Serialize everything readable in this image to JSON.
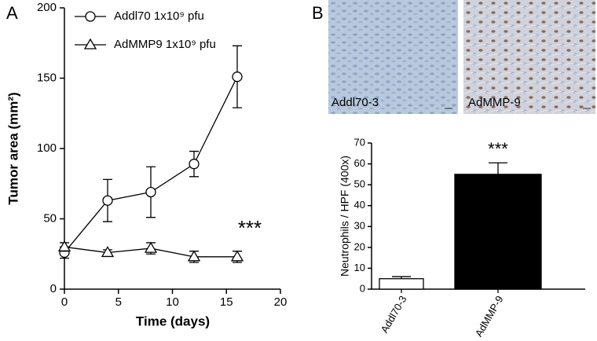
{
  "chart_data": [
    {
      "type": "line",
      "panel_label": "A",
      "x_label": "Time (days)",
      "y_label": "Tumor area (mm²)",
      "x": [
        0,
        4,
        8,
        12,
        16
      ],
      "series": [
        {
          "name": "Addl70 1x10⁹ pfu",
          "marker": "circle",
          "color": "#000000",
          "values": [
            26,
            63,
            69,
            89,
            151
          ],
          "errors": [
            4,
            15,
            18,
            9,
            22
          ]
        },
        {
          "name": "AdMMP9 1x10⁹ pfu",
          "marker": "triangle",
          "color": "#000000",
          "values": [
            30,
            26,
            29,
            23,
            23
          ],
          "errors": [
            3,
            2,
            4,
            4,
            4
          ]
        }
      ],
      "annotation": "***",
      "xlim": [
        0,
        20
      ],
      "xticks": [
        0,
        5,
        10,
        15,
        20
      ],
      "ylim": [
        0,
        200
      ],
      "yticks": [
        0,
        50,
        100,
        150,
        200
      ]
    },
    {
      "type": "bar",
      "panel_label": "B",
      "image_labels": [
        "Addl70-3",
        "AdMMP-9"
      ],
      "y_label": "Neutrophils / HPF (400x)",
      "categories": [
        "Addl70-3",
        "AdMMP-9"
      ],
      "values": [
        5,
        55
      ],
      "errors": [
        1,
        5.5
      ],
      "colors": [
        "#ffffff",
        "#000000"
      ],
      "annotation": "***",
      "ylim": [
        0,
        70
      ],
      "yticks": [
        0,
        10,
        20,
        30,
        40,
        50,
        60,
        70
      ]
    }
  ]
}
